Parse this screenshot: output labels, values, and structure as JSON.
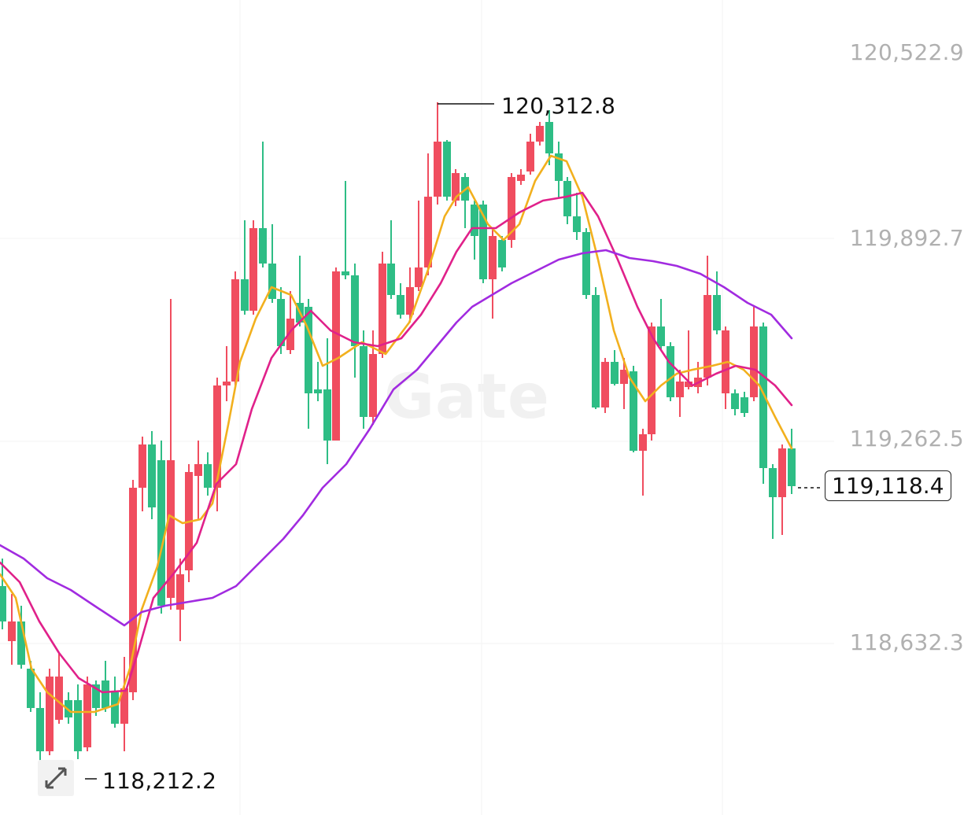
{
  "watermark": "Gate",
  "price_axis": [
    "120,522.9",
    "119,892.7",
    "119,262.5",
    "118,632.3"
  ],
  "high_label": "120,312.8",
  "low_label": "118,212.2",
  "last_price": "119,118.4",
  "colors": {
    "up": "#2ebd85",
    "down": "#f04d5f",
    "ma_short": "#f2b01e",
    "ma_mid": "#e0218a",
    "ma_long": "#a12be0"
  },
  "icons": {
    "expand": "expand-arrows-icon"
  }
}
